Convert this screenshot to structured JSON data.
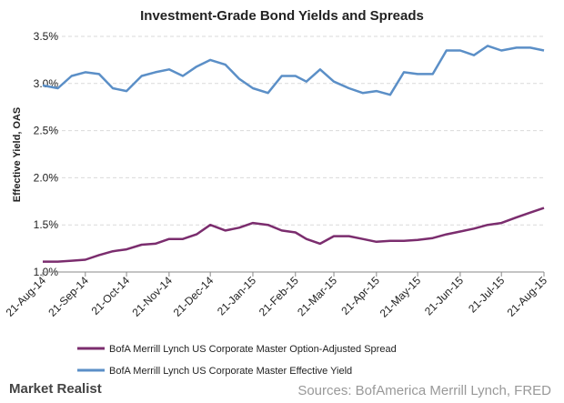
{
  "chart_data": {
    "type": "line",
    "title": "Investment-Grade Bond Yields and Spreads",
    "y_label": "Effective Yield, OAS",
    "x": [
      "21-Aug-14",
      "1-Sep-14",
      "11-Sep-14",
      "21-Sep-14",
      "1-Oct-14",
      "11-Oct-14",
      "21-Oct-14",
      "1-Nov-14",
      "11-Nov-14",
      "21-Nov-14",
      "1-Dec-14",
      "11-Dec-14",
      "21-Dec-14",
      "1-Jan-15",
      "11-Jan-15",
      "21-Jan-15",
      "1-Feb-15",
      "11-Feb-15",
      "21-Feb-15",
      "1-Mar-15",
      "11-Mar-15",
      "21-Mar-15",
      "1-Apr-15",
      "11-Apr-15",
      "21-Apr-15",
      "1-May-15",
      "11-May-15",
      "21-May-15",
      "1-Jun-15",
      "11-Jun-15",
      "21-Jun-15",
      "1-Jul-15",
      "11-Jul-15",
      "21-Jul-15",
      "1-Aug-15",
      "11-Aug-15",
      "21-Aug-15"
    ],
    "series": [
      {
        "name": "BofA Merrill Lynch US Corporate Master Option-Adjusted Spread",
        "color": "#7b2d6e",
        "values": [
          1.11,
          1.11,
          1.12,
          1.13,
          1.18,
          1.22,
          1.24,
          1.29,
          1.3,
          1.35,
          1.35,
          1.4,
          1.5,
          1.44,
          1.47,
          1.52,
          1.5,
          1.44,
          1.42,
          1.35,
          1.3,
          1.38,
          1.38,
          1.35,
          1.32,
          1.33,
          1.33,
          1.34,
          1.36,
          1.4,
          1.43,
          1.46,
          1.5,
          1.52,
          1.58,
          1.63,
          1.68
        ]
      },
      {
        "name": "BofA Merrill Lynch US Corporate Master Effective Yield",
        "color": "#5b8fc7",
        "values": [
          2.98,
          2.95,
          3.08,
          3.12,
          3.1,
          2.95,
          2.92,
          3.08,
          3.12,
          3.15,
          3.08,
          3.18,
          3.25,
          3.2,
          3.05,
          2.95,
          2.9,
          3.08,
          3.08,
          3.02,
          3.15,
          3.02,
          2.95,
          2.9,
          2.92,
          2.88,
          3.12,
          3.1,
          3.1,
          3.35,
          3.35,
          3.3,
          3.4,
          3.35,
          3.38,
          3.38,
          3.35
        ]
      }
    ],
    "ylim": [
      1.0,
      3.5
    ],
    "yticks": [
      {
        "value": 1.0,
        "label": "1.0%"
      },
      {
        "value": 1.5,
        "label": "1.5%"
      },
      {
        "value": 2.0,
        "label": "2.0%"
      },
      {
        "value": 2.5,
        "label": "2.5%"
      },
      {
        "value": 3.0,
        "label": "3.0%"
      },
      {
        "value": 3.5,
        "label": "3.5%"
      }
    ],
    "xticks": [
      "21-Aug-14",
      "21-Sep-14",
      "21-Oct-14",
      "21-Nov-14",
      "21-Dec-14",
      "21-Jan-15",
      "21-Feb-15",
      "21-Mar-15",
      "21-Apr-15",
      "21-May-15",
      "21-Jun-15",
      "21-Jul-15",
      "21-Aug-15"
    ],
    "grid": true
  },
  "footer": {
    "brand": "Market Realist",
    "source": "Sources: BofAmerica Merrill Lynch, FRED"
  }
}
